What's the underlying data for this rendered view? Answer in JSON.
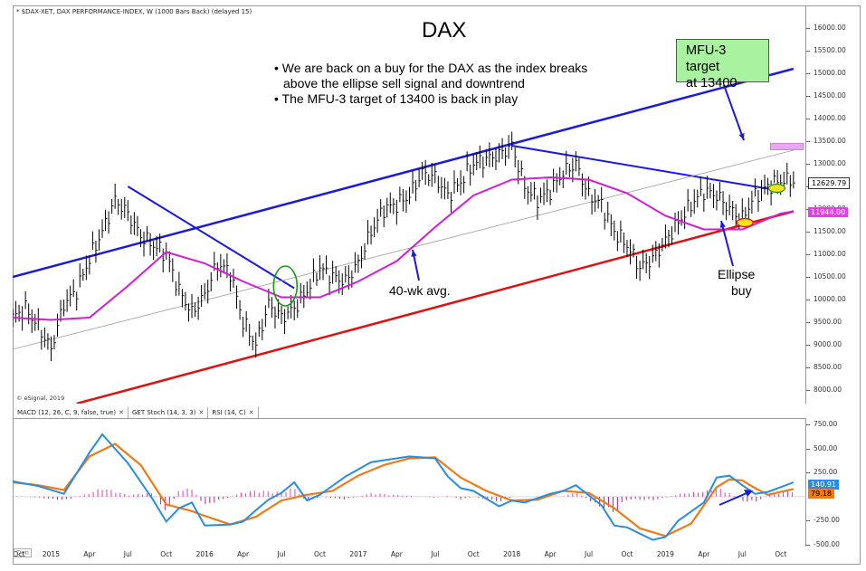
{
  "header": "* $DAX-XET, DAX PERFORMANCE-INDEX, W (1000 Bars Back) (delayed 15)",
  "title": "DAX",
  "bullets": [
    "• We are back on a buy for the DAX as the index breaks",
    "above the ellipse sell signal and downtrend",
    "• The MFU-3 target of 13400 is back in play"
  ],
  "annotations": {
    "target_line1": "MFU-3 target",
    "target_line2": "at 13400",
    "avg_label": "40-wk avg.",
    "ellipse_line1": "Ellipse",
    "ellipse_line2": "buy"
  },
  "copyright": "© eSignal, 2019",
  "tabs": [
    {
      "label": "MACD (12, 26, C, 9, false, true)"
    },
    {
      "label": "GET Stoch (14, 3, 3)"
    },
    {
      "label": "RSI (14, C)"
    }
  ],
  "dyn_label": "Dyn",
  "price_badge": "12629.79",
  "avg_badge": "11944.00",
  "macd_badge": "140.91",
  "signal_badge": "79.18",
  "colors": {
    "trend_blue": "#1a1adf",
    "support_red": "#e01010",
    "avg_magenta": "#d21ed2",
    "macd_blue": "#2a8de0",
    "signal_orange": "#f07a18",
    "target_box": "#a9f2a0",
    "target_zone": "#e6a8ee"
  },
  "chart_data": [
    {
      "type": "line",
      "title": "DAX",
      "ylim": [
        7700,
        16500
      ],
      "y_ticks": [
        "16000.00",
        "15500.00",
        "15000.00",
        "14500.00",
        "14000.00",
        "13500.00",
        "13000.00",
        "12500.00",
        "12000.00",
        "11500.00",
        "11000.00",
        "10500.00",
        "10000.00",
        "9500.00",
        "9000.00",
        "8500.00",
        "8000.00"
      ],
      "x_ticks": [
        "Oct",
        "2015",
        "Apr",
        "Jul",
        "Oct",
        "2016",
        "Apr",
        "Jul",
        "Oct",
        "2017",
        "Apr",
        "Jul",
        "Oct",
        "2018",
        "Apr",
        "Jul",
        "Oct",
        "2019",
        "Apr",
        "Jul",
        "Oct"
      ],
      "x_tick_t": [
        0.5,
        3,
        6,
        9,
        12,
        15,
        18,
        21,
        24,
        27,
        30,
        33,
        36,
        39,
        42,
        45,
        48,
        51,
        54,
        57,
        60
      ],
      "series": [
        {
          "t": [
            0,
            1,
            2,
            3,
            4,
            5,
            6,
            7,
            8,
            9,
            10,
            11,
            12,
            13,
            14,
            15,
            16,
            17,
            18,
            19,
            20,
            21,
            22,
            23,
            24,
            25,
            26,
            27,
            28,
            29,
            30,
            31,
            32,
            33,
            34,
            35,
            36,
            37,
            38,
            39,
            40,
            41,
            42,
            43,
            44,
            45,
            46,
            47,
            48,
            49,
            50,
            51,
            52,
            53,
            54,
            55,
            56,
            57,
            58,
            59,
            60,
            61
          ],
          "values": [
            9600,
            9800,
            9400,
            8900,
            9900,
            10200,
            10900,
            11500,
            12200,
            11900,
            11400,
            11200,
            11000,
            10200,
            9700,
            10100,
            10800,
            10600,
            9500,
            9000,
            9900,
            9600,
            9800,
            10200,
            10700,
            10500,
            10400,
            10800,
            11500,
            12000,
            12100,
            12300,
            12800,
            12700,
            12300,
            12600,
            13000,
            13100,
            13200,
            13400,
            12500,
            12200,
            12400,
            12800,
            13000,
            12300,
            12100,
            11500,
            11200,
            10700,
            10900,
            11300,
            11700,
            12100,
            12400,
            12300,
            12000,
            11800,
            12300,
            12500,
            12629,
            12630
          ]
        },
        {
          "name": "40-wk avg.",
          "t": [
            0,
            3,
            6,
            9,
            12,
            15,
            18,
            21,
            24,
            27,
            30,
            33,
            36,
            39,
            42,
            45,
            48,
            51,
            54,
            57,
            60,
            61
          ],
          "values": [
            9600,
            9550,
            9600,
            10300,
            11050,
            10800,
            10400,
            10050,
            10050,
            10400,
            10850,
            11600,
            12300,
            12650,
            12700,
            12650,
            12350,
            11850,
            11550,
            11550,
            11900,
            11944
          ]
        }
      ],
      "trendlines": [
        {
          "name": "upper channel",
          "from": [
            0,
            10500
          ],
          "to": [
            61,
            15100
          ]
        },
        {
          "name": "lower channel",
          "from": [
            5,
            7700
          ],
          "to": [
            61,
            11950
          ]
        },
        {
          "name": "2015 downtrend",
          "from": [
            9,
            12500
          ],
          "to": [
            22,
            10250
          ]
        },
        {
          "name": "2018 downtrend",
          "from": [
            39,
            13400
          ],
          "to": [
            59,
            12450
          ]
        },
        {
          "name": "midline",
          "from": [
            0,
            8900
          ],
          "to": [
            61,
            13300
          ]
        }
      ],
      "target": 13400
    },
    {
      "type": "line",
      "title": "MACD (12, 26, C, 9, false, true)",
      "ylim": [
        -520,
        820
      ],
      "y_ticks": [
        "750.00",
        "500.00",
        "250.00",
        "-250.00",
        "-500.00"
      ],
      "series": [
        {
          "name": "MACD",
          "t": [
            0,
            2,
            4,
            6,
            7,
            9,
            11,
            12,
            13,
            14,
            15,
            17,
            18,
            19,
            20,
            21,
            22,
            23,
            24,
            26,
            28,
            30,
            31,
            33,
            34,
            35,
            36,
            38,
            39,
            40,
            42,
            43,
            44,
            46,
            47,
            48,
            50,
            51,
            52,
            54,
            55,
            56,
            57,
            58,
            59,
            60,
            61
          ],
          "values": [
            160,
            110,
            30,
            460,
            650,
            350,
            -40,
            -260,
            -120,
            -60,
            -300,
            -290,
            -260,
            -140,
            -30,
            40,
            150,
            -40,
            20,
            210,
            360,
            400,
            420,
            400,
            210,
            90,
            60,
            -100,
            -40,
            -60,
            30,
            60,
            120,
            -90,
            -300,
            -320,
            -450,
            -420,
            -250,
            -60,
            200,
            220,
            120,
            30,
            50,
            100,
            150
          ]
        },
        {
          "name": "Signal",
          "t": [
            0,
            2,
            4,
            6,
            8,
            10,
            12,
            14,
            15,
            17,
            19,
            21,
            23,
            25,
            27,
            29,
            31,
            33,
            35,
            37,
            39,
            41,
            43,
            45,
            47,
            49,
            51,
            53,
            55,
            56,
            57,
            58,
            59,
            60,
            61
          ],
          "values": [
            150,
            120,
            70,
            420,
            550,
            330,
            -80,
            -150,
            -200,
            -290,
            -210,
            -40,
            20,
            60,
            220,
            330,
            400,
            410,
            200,
            60,
            -40,
            -30,
            60,
            40,
            -120,
            -330,
            -410,
            -280,
            100,
            180,
            170,
            90,
            20,
            50,
            80
          ]
        },
        {
          "name": "Histogram",
          "t": [
            0,
            2,
            4,
            6,
            7,
            9,
            11,
            12,
            13,
            14,
            15,
            17,
            18,
            19,
            20,
            21,
            22,
            23,
            24,
            26,
            28,
            30,
            31,
            33,
            34,
            35,
            36,
            38,
            39,
            40,
            42,
            43,
            44,
            46,
            47,
            48,
            50,
            51,
            52,
            54,
            55,
            56,
            57,
            58,
            59,
            60,
            61
          ],
          "values": [
            10,
            -10,
            -40,
            40,
            100,
            20,
            40,
            -180,
            80,
            90,
            -100,
            0,
            50,
            70,
            60,
            50,
            100,
            -60,
            0,
            -30,
            40,
            20,
            10,
            -10,
            10,
            -30,
            0,
            -60,
            0,
            0,
            0,
            0,
            60,
            -130,
            -180,
            -30,
            -40,
            -10,
            30,
            60,
            100,
            40,
            -50,
            -60,
            10,
            50,
            70
          ]
        }
      ]
    }
  ]
}
